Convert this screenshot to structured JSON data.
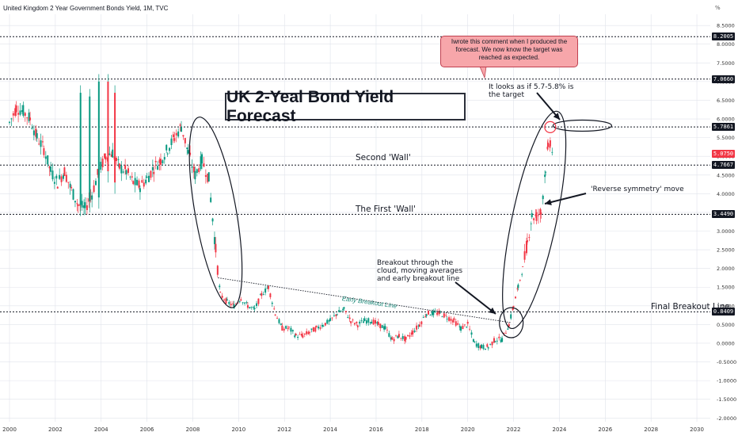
{
  "header": {
    "instrument": "United Kingdom 2 Year Government Bonds Yield, 1M, TVC",
    "scale_unit": "%"
  },
  "title": "UK 2-Yeal Bond Yield Forecast",
  "callout": "Iwrote this comment when I produced the forecast. We now know the target was reached as expected.",
  "annotations": {
    "target": "It looks as if 5.7-5.8% is the target",
    "second_wall": "Second 'Wall'",
    "first_wall": "The First 'Wall'",
    "reverse_symmetry": "'Reverse symmetry' move",
    "breakout": "Breakout through the cloud, moving averages and early breakout line",
    "early_breakout_line": "Early Breakout Line",
    "final_breakout_line": "Final Breakout Line"
  },
  "price_tags": [
    {
      "label": "8.2005",
      "value": 8.2005,
      "color": "#131722"
    },
    {
      "label": "7.0660",
      "value": 7.066,
      "color": "#131722"
    },
    {
      "label": "5.7861",
      "value": 5.7861,
      "color": "#131722"
    },
    {
      "label": "5.0750",
      "value": 5.075,
      "color": "#f23645"
    },
    {
      "label": "4.7667",
      "value": 4.7667,
      "color": "#131722"
    },
    {
      "label": "3.4490",
      "value": 3.449,
      "color": "#131722"
    },
    {
      "label": "0.8409",
      "value": 0.8409,
      "color": "#131722"
    }
  ],
  "colors": {
    "up": "#089981",
    "down": "#f23645",
    "text": "#131722",
    "grid": "#e0e3eb",
    "ellipse": "#131722"
  },
  "chart_data": {
    "type": "candlestick",
    "title": "United Kingdom 2 Year Government Bonds Yield, 1M, TVC",
    "x_axis_ticks": [
      "2000",
      "2002",
      "2004",
      "2006",
      "2008",
      "2010",
      "2012",
      "2014",
      "2016",
      "2018",
      "2020",
      "2022",
      "2024",
      "2026",
      "2028",
      "2030"
    ],
    "y_axis_ticks": [
      "8.5000",
      "8.0000",
      "7.5000",
      "7.0000",
      "6.5000",
      "6.0000",
      "5.5000",
      "5.0000",
      "4.5000",
      "4.0000",
      "3.5000",
      "3.0000",
      "2.5000",
      "2.0000",
      "1.5000",
      "1.0000",
      "0.5000",
      "0.0000",
      "-0.5000",
      "-1.0000",
      "-1.5000",
      "-2.0000"
    ],
    "ylim": [
      -2.1,
      8.8
    ],
    "xlim": [
      2000.0,
      2031.0
    ],
    "horizontal_levels": [
      8.2005,
      7.066,
      5.7861,
      4.7667,
      3.449,
      0.8409
    ],
    "last_value": 5.075,
    "series": [
      {
        "values": [
          [
            2000.0,
            5.9
          ],
          [
            2000.3,
            6.3
          ],
          [
            2000.6,
            6.2
          ],
          [
            2000.9,
            6.0
          ],
          [
            2001.2,
            5.5
          ],
          [
            2001.5,
            5.2
          ],
          [
            2001.8,
            4.6
          ],
          [
            2002.1,
            4.3
          ],
          [
            2002.4,
            4.6
          ],
          [
            2002.7,
            4.1
          ],
          [
            2003.0,
            3.7
          ],
          [
            2003.3,
            3.6
          ],
          [
            2003.6,
            4.0
          ],
          [
            2003.9,
            4.6
          ],
          [
            2004.2,
            5.0
          ],
          [
            2004.5,
            5.1
          ],
          [
            2004.8,
            4.7
          ],
          [
            2005.1,
            4.6
          ],
          [
            2005.4,
            4.3
          ],
          [
            2005.7,
            4.2
          ],
          [
            2006.0,
            4.4
          ],
          [
            2006.3,
            4.7
          ],
          [
            2006.6,
            4.9
          ],
          [
            2006.9,
            5.2
          ],
          [
            2007.2,
            5.5
          ],
          [
            2007.5,
            5.8
          ],
          [
            2007.8,
            5.1
          ],
          [
            2008.1,
            4.5
          ],
          [
            2008.4,
            4.9
          ],
          [
            2008.7,
            4.4
          ],
          [
            2009.0,
            2.5
          ],
          [
            2009.2,
            1.3
          ],
          [
            2009.5,
            1.1
          ],
          [
            2009.8,
            1.0
          ],
          [
            2010.1,
            1.2
          ],
          [
            2010.4,
            1.0
          ],
          [
            2010.7,
            0.9
          ],
          [
            2011.0,
            1.3
          ],
          [
            2011.3,
            1.5
          ],
          [
            2011.6,
            0.8
          ],
          [
            2011.9,
            0.4
          ],
          [
            2012.2,
            0.4
          ],
          [
            2012.5,
            0.2
          ],
          [
            2012.8,
            0.2
          ],
          [
            2013.1,
            0.3
          ],
          [
            2013.4,
            0.4
          ],
          [
            2013.7,
            0.5
          ],
          [
            2014.0,
            0.6
          ],
          [
            2014.3,
            0.8
          ],
          [
            2014.6,
            0.9
          ],
          [
            2014.9,
            0.6
          ],
          [
            2015.2,
            0.5
          ],
          [
            2015.5,
            0.6
          ],
          [
            2015.8,
            0.6
          ],
          [
            2016.1,
            0.5
          ],
          [
            2016.4,
            0.4
          ],
          [
            2016.7,
            0.1
          ],
          [
            2017.0,
            0.2
          ],
          [
            2017.3,
            0.1
          ],
          [
            2017.6,
            0.3
          ],
          [
            2017.9,
            0.5
          ],
          [
            2018.2,
            0.8
          ],
          [
            2018.5,
            0.8
          ],
          [
            2018.8,
            0.8
          ],
          [
            2019.1,
            0.7
          ],
          [
            2019.4,
            0.6
          ],
          [
            2019.7,
            0.4
          ],
          [
            2020.0,
            0.5
          ],
          [
            2020.3,
            0.0
          ],
          [
            2020.6,
            -0.1
          ],
          [
            2020.9,
            -0.1
          ],
          [
            2021.2,
            0.1
          ],
          [
            2021.5,
            0.1
          ],
          [
            2021.8,
            0.5
          ],
          [
            2022.0,
            1.0
          ],
          [
            2022.2,
            1.5
          ],
          [
            2022.4,
            2.0
          ],
          [
            2022.6,
            2.7
          ],
          [
            2022.8,
            3.4
          ],
          [
            2023.0,
            3.4
          ],
          [
            2023.2,
            3.5
          ],
          [
            2023.4,
            4.7
          ],
          [
            2023.5,
            5.2
          ],
          [
            2023.6,
            5.4
          ],
          [
            2023.7,
            5.1
          ]
        ]
      }
    ]
  }
}
